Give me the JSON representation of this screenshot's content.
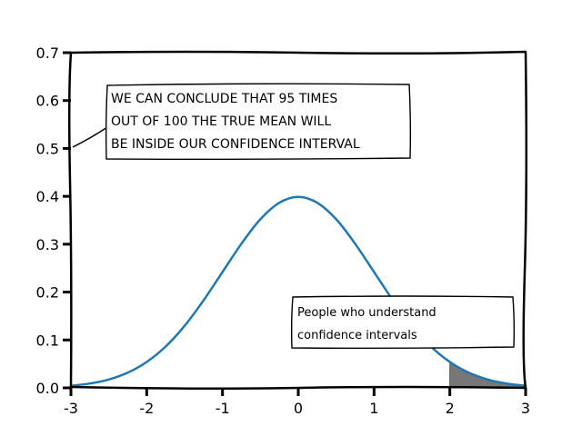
{
  "chart_data": {
    "type": "line",
    "title": "",
    "xlabel": "",
    "ylabel": "",
    "xlim": [
      -3,
      3
    ],
    "ylim": [
      0,
      0.7
    ],
    "xticks": [
      "-3",
      "-2",
      "-1",
      "0",
      "1",
      "2",
      "3"
    ],
    "yticks": [
      "0.0",
      "0.1",
      "0.2",
      "0.3",
      "0.4",
      "0.5",
      "0.6",
      "0.7"
    ],
    "grid": false,
    "series": [
      {
        "x": [
          -3.0,
          -2.75,
          -2.5,
          -2.25,
          -2.0,
          -1.75,
          -1.5,
          -1.25,
          -1.0,
          -0.75,
          -0.5,
          -0.25,
          0.0,
          0.25,
          0.5,
          0.75,
          1.0,
          1.25,
          1.5,
          1.75,
          2.0,
          2.25,
          2.5,
          2.75,
          3.0
        ],
        "y": [
          0.0044,
          0.0091,
          0.0175,
          0.0317,
          0.054,
          0.0863,
          0.1295,
          0.1826,
          0.242,
          0.3011,
          0.3521,
          0.3867,
          0.3989,
          0.3867,
          0.3521,
          0.3011,
          0.242,
          0.1826,
          0.1295,
          0.0863,
          0.054,
          0.0317,
          0.0175,
          0.0091,
          0.0044
        ],
        "color": "#1f77b4"
      }
    ],
    "shaded_region": {
      "x_from": 2.0,
      "x_to": 3.0,
      "color": "#777777"
    },
    "annotations": [
      {
        "lines": [
          "WE CAN CONCLUDE THAT 95 TIMES",
          "OUT OF 100 THE TRUE MEAN WILL",
          "BE INSIDE OUR CONFIDENCE INTERVAL"
        ]
      },
      {
        "lines": [
          "People who understand",
          "confidence intervals"
        ]
      }
    ]
  }
}
